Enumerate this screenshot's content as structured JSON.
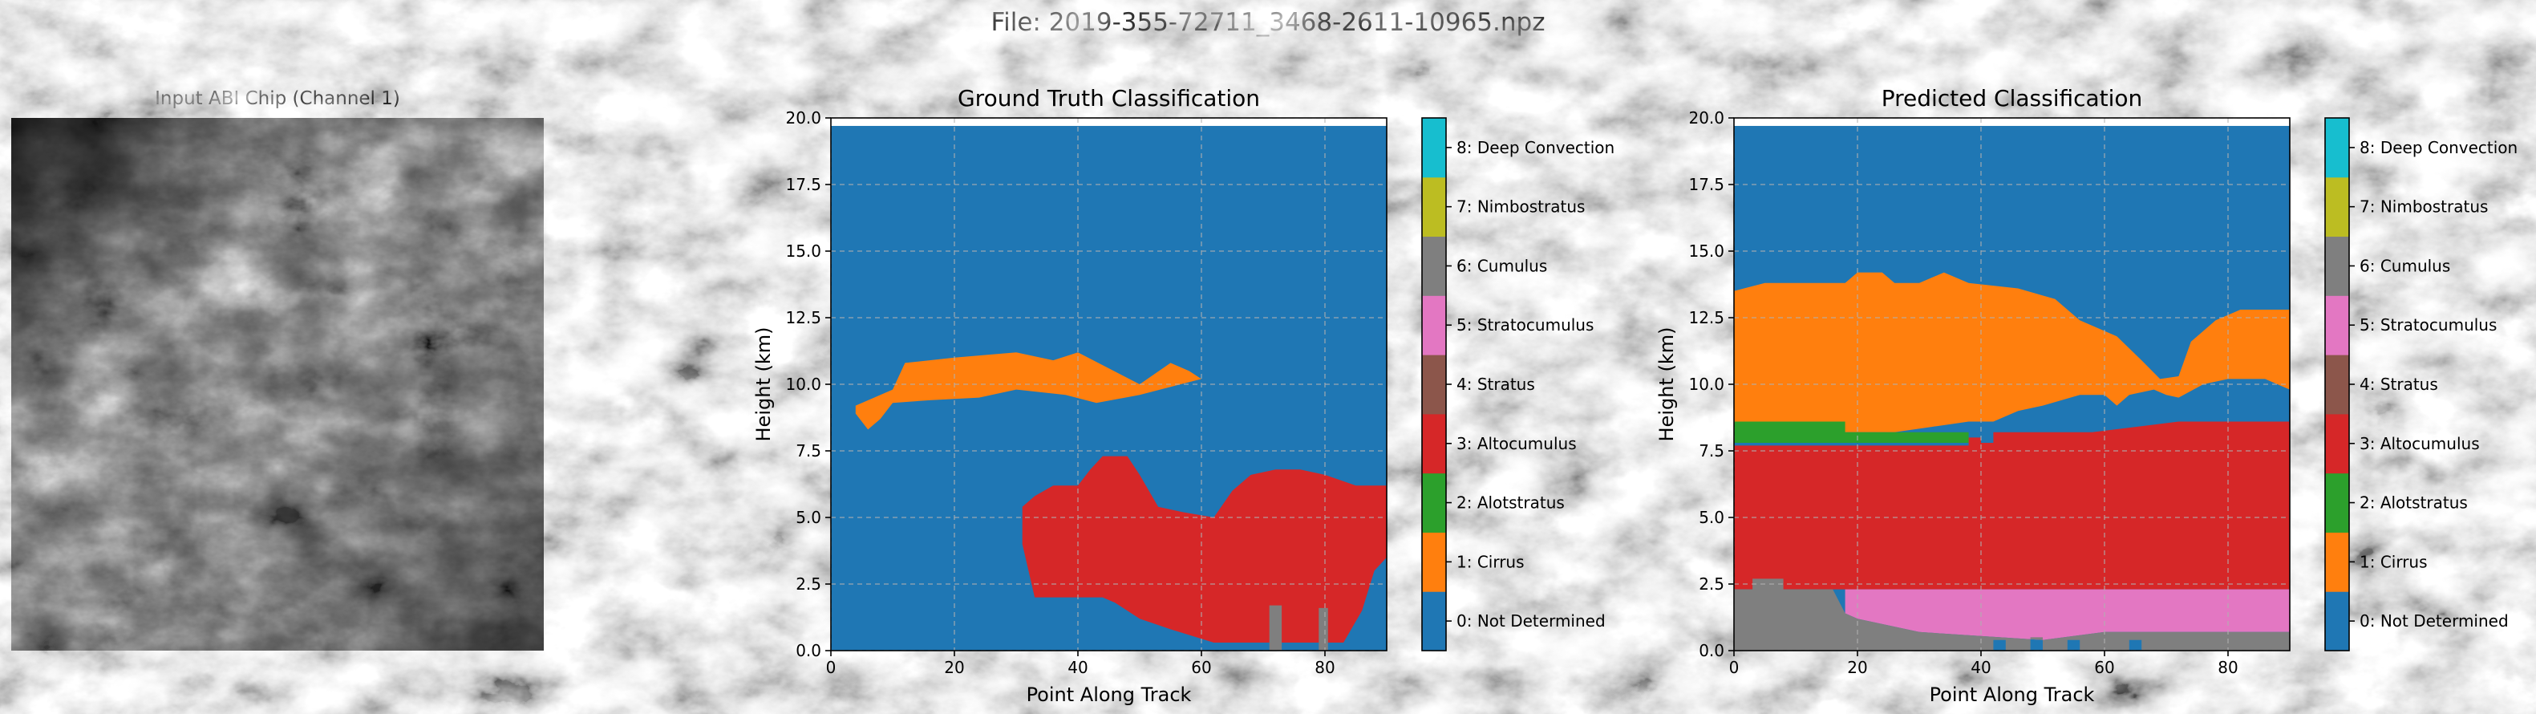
{
  "figure": {
    "suptitle": "File: 2019-355-72711_3468-2611-10965.npz"
  },
  "input_image": {
    "title": "Input ABI Chip (Channel 1)"
  },
  "colors": {
    "0": "#1f77b4",
    "1": "#ff7f0e",
    "2": "#2ca02c",
    "3": "#d62728",
    "4": "#8c564b",
    "5": "#e377c2",
    "6": "#7f7f7f",
    "7": "#bcbd22",
    "8": "#17becf"
  },
  "chart_data": [
    {
      "type": "heatmap",
      "title": "Ground Truth Classification",
      "xlabel": "Point Along Track",
      "ylabel": "Height (km)",
      "xlim": [
        0,
        90
      ],
      "ylim": [
        0,
        20
      ],
      "xticks": [
        "0",
        "20",
        "40",
        "60",
        "80"
      ],
      "yticks": [
        "0.0",
        "2.5",
        "5.0",
        "7.5",
        "10.0",
        "12.5",
        "15.0",
        "17.5",
        "20.0"
      ],
      "grid": true,
      "colorbar": [
        "0: Not Determined",
        "1: Cirrus",
        "2: Alotstratus",
        "3: Altocumulus",
        "4: Stratus",
        "5: Stratocumulus",
        "6: Cumulus",
        "7: Nimbostratus",
        "8: Deep Convection"
      ],
      "background_class": 0,
      "regions": [
        {
          "class": 1,
          "polygon": [
            [
              4,
              9.2
            ],
            [
              10,
              9.8
            ],
            [
              12,
              10.8
            ],
            [
              20,
              11.0
            ],
            [
              30,
              11.2
            ],
            [
              36,
              10.9
            ],
            [
              40,
              11.2
            ],
            [
              45,
              10.6
            ],
            [
              50,
              10.0
            ],
            [
              55,
              10.8
            ],
            [
              58,
              10.5
            ],
            [
              60,
              10.2
            ],
            [
              55,
              9.9
            ],
            [
              50,
              9.6
            ],
            [
              43,
              9.3
            ],
            [
              38,
              9.6
            ],
            [
              30,
              9.8
            ],
            [
              24,
              9.5
            ],
            [
              16,
              9.4
            ],
            [
              10,
              9.3
            ],
            [
              8,
              8.7
            ],
            [
              6,
              8.3
            ],
            [
              4,
              8.9
            ]
          ]
        },
        {
          "class": 3,
          "polygon": [
            [
              31,
              5.4
            ],
            [
              33,
              5.8
            ],
            [
              36,
              6.2
            ],
            [
              40,
              6.2
            ],
            [
              42,
              6.8
            ],
            [
              44,
              7.3
            ],
            [
              48,
              7.3
            ],
            [
              50,
              6.6
            ],
            [
              53,
              5.4
            ],
            [
              57,
              5.2
            ],
            [
              62,
              5.0
            ],
            [
              65,
              6.0
            ],
            [
              68,
              6.6
            ],
            [
              72,
              6.8
            ],
            [
              76,
              6.8
            ],
            [
              80,
              6.6
            ],
            [
              85,
              6.2
            ],
            [
              90,
              6.2
            ],
            [
              90,
              3.5
            ],
            [
              88,
              3.0
            ],
            [
              86,
              1.5
            ],
            [
              83,
              0.3
            ],
            [
              79,
              0.3
            ],
            [
              75,
              0.3
            ],
            [
              68,
              0.3
            ],
            [
              62,
              0.3
            ],
            [
              55,
              0.8
            ],
            [
              50,
              1.2
            ],
            [
              46,
              1.8
            ],
            [
              44,
              2.0
            ],
            [
              42,
              2.0
            ],
            [
              39,
              2.0
            ],
            [
              36,
              2.0
            ],
            [
              33,
              2.0
            ],
            [
              32,
              3.0
            ],
            [
              31,
              4.0
            ]
          ]
        },
        {
          "class": 6,
          "polygon": [
            [
              71,
              0
            ],
            [
              73,
              0
            ],
            [
              73,
              1.7
            ],
            [
              71,
              1.7
            ]
          ]
        },
        {
          "class": 6,
          "polygon": [
            [
              79,
              0
            ],
            [
              80.5,
              0
            ],
            [
              80.5,
              1.6
            ],
            [
              79,
              1.6
            ]
          ]
        }
      ]
    },
    {
      "type": "heatmap",
      "title": "Predicted Classification",
      "xlabel": "Point Along Track",
      "ylabel": "Height (km)",
      "xlim": [
        0,
        90
      ],
      "ylim": [
        0,
        20
      ],
      "xticks": [
        "0",
        "20",
        "40",
        "60",
        "80"
      ],
      "yticks": [
        "0.0",
        "2.5",
        "5.0",
        "7.5",
        "10.0",
        "12.5",
        "15.0",
        "17.5",
        "20.0"
      ],
      "grid": true,
      "colorbar": [
        "0: Not Determined",
        "1: Cirrus",
        "2: Alotstratus",
        "3: Altocumulus",
        "4: Stratus",
        "5: Stratocumulus",
        "6: Cumulus",
        "7: Nimbostratus",
        "8: Deep Convection"
      ],
      "background_class": 0,
      "regions": [
        {
          "class": 1,
          "polygon": [
            [
              0,
              13.5
            ],
            [
              5,
              13.8
            ],
            [
              18,
              13.8
            ],
            [
              20,
              14.2
            ],
            [
              24,
              14.2
            ],
            [
              26,
              13.8
            ],
            [
              30,
              13.8
            ],
            [
              34,
              14.2
            ],
            [
              38,
              13.8
            ],
            [
              46,
              13.6
            ],
            [
              52,
              13.2
            ],
            [
              56,
              12.4
            ],
            [
              62,
              11.8
            ],
            [
              66,
              10.9
            ],
            [
              69,
              10.2
            ],
            [
              72,
              10.3
            ],
            [
              74,
              11.6
            ],
            [
              78,
              12.4
            ],
            [
              82,
              12.8
            ],
            [
              90,
              12.8
            ],
            [
              90,
              9.8
            ],
            [
              86,
              10.2
            ],
            [
              80,
              10.2
            ],
            [
              76,
              10.0
            ],
            [
              72,
              9.5
            ],
            [
              70,
              9.6
            ],
            [
              68,
              9.8
            ],
            [
              64,
              9.6
            ],
            [
              62,
              9.2
            ],
            [
              60,
              9.6
            ],
            [
              56,
              9.6
            ],
            [
              50,
              9.2
            ],
            [
              46,
              9.0
            ],
            [
              42,
              8.6
            ],
            [
              38,
              8.6
            ],
            [
              32,
              8.4
            ],
            [
              26,
              8.2
            ],
            [
              18,
              8.2
            ],
            [
              0,
              8.6
            ]
          ]
        },
        {
          "class": 2,
          "polygon": [
            [
              0,
              8.6
            ],
            [
              18,
              8.6
            ],
            [
              18,
              8.2
            ],
            [
              26,
              8.2
            ],
            [
              32,
              8.2
            ],
            [
              38,
              8.2
            ],
            [
              38,
              7.8
            ],
            [
              0,
              7.8
            ]
          ]
        },
        {
          "class": 3,
          "polygon": [
            [
              0,
              7.7
            ],
            [
              38,
              7.7
            ],
            [
              38,
              8.0
            ],
            [
              40,
              8.0
            ],
            [
              40,
              7.8
            ],
            [
              42,
              7.8
            ],
            [
              42,
              8.2
            ],
            [
              58,
              8.2
            ],
            [
              72,
              8.6
            ],
            [
              90,
              8.6
            ],
            [
              90,
              2.3
            ],
            [
              0,
              2.3
            ]
          ]
        },
        {
          "class": 5,
          "polygon": [
            [
              18,
              2.3
            ],
            [
              90,
              2.3
            ],
            [
              90,
              0.7
            ],
            [
              60,
              0.7
            ],
            [
              50,
              0.4
            ],
            [
              30,
              0.7
            ],
            [
              20,
              1.2
            ],
            [
              18,
              1.4
            ]
          ]
        },
        {
          "class": 6,
          "polygon": [
            [
              0,
              0
            ],
            [
              0,
              2.3
            ],
            [
              3,
              2.3
            ],
            [
              3,
              2.7
            ],
            [
              8,
              2.7
            ],
            [
              8,
              2.3
            ],
            [
              16,
              2.3
            ],
            [
              18,
              1.4
            ],
            [
              20,
              1.2
            ],
            [
              30,
              0.7
            ],
            [
              50,
              0.4
            ],
            [
              60,
              0.7
            ],
            [
              90,
              0.7
            ],
            [
              90,
              0
            ],
            [
              66,
              0
            ],
            [
              66,
              0.4
            ],
            [
              64,
              0.4
            ],
            [
              64,
              0
            ],
            [
              56,
              0
            ],
            [
              56,
              0.4
            ],
            [
              54,
              0.4
            ],
            [
              54,
              0
            ],
            [
              50,
              0
            ],
            [
              50,
              0.5
            ],
            [
              48,
              0.5
            ],
            [
              48,
              0
            ],
            [
              44,
              0
            ],
            [
              44,
              0.4
            ],
            [
              42,
              0.4
            ],
            [
              42,
              0
            ]
          ]
        }
      ]
    }
  ]
}
